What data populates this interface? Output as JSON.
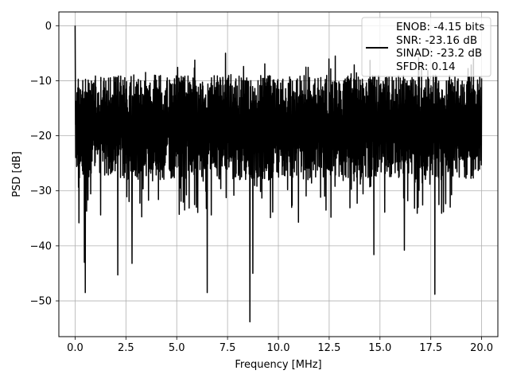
{
  "chart_data": {
    "type": "line",
    "title": "",
    "xlabel": "Frequency [MHz]",
    "ylabel": "PSD [dB]",
    "xlim": [
      -0.8,
      20.8
    ],
    "ylim": [
      -56.5,
      2.5
    ],
    "xticks": [
      0.0,
      2.5,
      5.0,
      7.5,
      10.0,
      12.5,
      15.0,
      17.5,
      20.0
    ],
    "xtick_labels": [
      "0.0",
      "2.5",
      "5.0",
      "7.5",
      "10.0",
      "12.5",
      "15.0",
      "17.5",
      "20.0"
    ],
    "yticks": [
      0,
      -10,
      -20,
      -30,
      -40,
      -50
    ],
    "ytick_labels": [
      "0",
      "−10",
      "−20",
      "−30",
      "−40",
      "−50"
    ],
    "grid": true,
    "legend_position": "upper-right",
    "line_color": "#000000",
    "legend": {
      "entries": [
        "ENOB: -4.15 bits",
        "SNR: -23.16 dB",
        "SINAD: -23.2 dB",
        "SFDR: 0.14"
      ]
    },
    "series": [
      {
        "x_start": 0.0,
        "x_end": 20.0,
        "peak": {
          "x": 0.0,
          "y": 0.0
        },
        "typical_range": [
          -28,
          -8
        ],
        "dips": [
          {
            "x": 0.5,
            "y": -48.5
          },
          {
            "x": 0.45,
            "y": -43.0
          },
          {
            "x": 2.1,
            "y": -45.3
          },
          {
            "x": 2.8,
            "y": -43.2
          },
          {
            "x": 6.5,
            "y": -48.5
          },
          {
            "x": 8.6,
            "y": -53.8
          },
          {
            "x": 8.75,
            "y": -45.0
          },
          {
            "x": 14.7,
            "y": -41.6
          },
          {
            "x": 16.2,
            "y": -40.8
          },
          {
            "x": 17.7,
            "y": -48.8
          }
        ],
        "highs": [
          {
            "x": 7.4,
            "y": -5.0
          },
          {
            "x": 12.8,
            "y": -5.5
          },
          {
            "x": 16.9,
            "y": -5.8
          },
          {
            "x": 19.6,
            "y": -6.0
          }
        ]
      }
    ]
  }
}
